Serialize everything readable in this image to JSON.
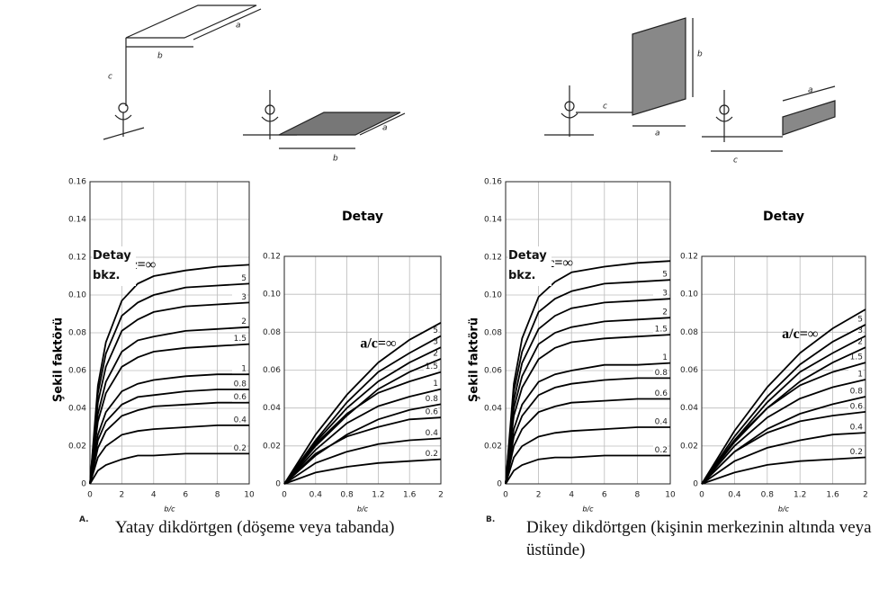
{
  "chart_data": [
    {
      "type": "line",
      "x": [
        0,
        0.5,
        1,
        2,
        3,
        4,
        6,
        8,
        10
      ],
      "xlim": [
        0,
        10
      ],
      "ylim": [
        0,
        0.16
      ],
      "xticks": [
        0,
        2,
        4,
        6,
        8,
        10
      ],
      "yticks": [
        0,
        0.02,
        0.04,
        0.06,
        0.08,
        {
          "value": 0.1,
          "label": "0.10"
        },
        0.12,
        0.14,
        0.16
      ],
      "x_label": "b/c",
      "y_label": "Şekil faktörü",
      "annotation": "Detay bkz.",
      "grid": true,
      "color": "#000000",
      "series": [
        {
          "name": "0.2",
          "values": [
            0,
            0.007,
            0.01,
            0.013,
            0.015,
            0.015,
            0.016,
            0.016,
            0.016
          ]
        },
        {
          "name": "0.4",
          "values": [
            0,
            0.014,
            0.02,
            0.026,
            0.028,
            0.029,
            0.03,
            0.031,
            0.031
          ]
        },
        {
          "name": "0.6",
          "values": [
            0,
            0.019,
            0.028,
            0.036,
            0.039,
            0.041,
            0.042,
            0.043,
            0.043
          ]
        },
        {
          "name": "0.8",
          "values": [
            0,
            0.023,
            0.033,
            0.042,
            0.046,
            0.047,
            0.049,
            0.05,
            0.05
          ]
        },
        {
          "name": "1",
          "values": [
            0,
            0.026,
            0.038,
            0.049,
            0.053,
            0.055,
            0.057,
            0.058,
            0.058
          ]
        },
        {
          "name": "1.5",
          "values": [
            0,
            0.033,
            0.048,
            0.062,
            0.067,
            0.07,
            0.072,
            0.073,
            0.074
          ]
        },
        {
          "name": "2",
          "values": [
            0,
            0.037,
            0.054,
            0.07,
            0.076,
            0.078,
            0.081,
            0.082,
            0.083
          ]
        },
        {
          "name": "3",
          "values": [
            0,
            0.043,
            0.062,
            0.081,
            0.087,
            0.091,
            0.094,
            0.095,
            0.096
          ]
        },
        {
          "name": "5",
          "values": [
            0,
            0.048,
            0.069,
            0.089,
            0.096,
            0.1,
            0.104,
            0.105,
            0.106
          ]
        },
        {
          "name": "a/c=∞",
          "values": [
            0,
            0.052,
            0.075,
            0.097,
            0.106,
            0.11,
            0.113,
            0.115,
            0.116
          ]
        }
      ]
    },
    {
      "type": "line",
      "x": [
        0,
        0.4,
        0.8,
        1.2,
        1.6,
        2
      ],
      "xlim": [
        0,
        2
      ],
      "ylim": [
        0,
        0.12
      ],
      "xticks": [
        0,
        0.4,
        0.8,
        1.2,
        1.6,
        2
      ],
      "yticks": [
        0,
        0.02,
        0.04,
        0.06,
        0.08,
        {
          "value": 0.1,
          "label": "0.10"
        },
        0.12
      ],
      "x_label": "b/c",
      "title": "Detay",
      "grid": true,
      "color": "#000000",
      "series": [
        {
          "name": "0.2",
          "values": [
            0,
            0.006,
            0.009,
            0.011,
            0.012,
            0.013
          ]
        },
        {
          "name": "0.4",
          "values": [
            0,
            0.011,
            0.017,
            0.021,
            0.023,
            0.024
          ]
        },
        {
          "name": "0.6",
          "values": [
            0,
            0.016,
            0.025,
            0.03,
            0.034,
            0.035
          ]
        },
        {
          "name": "0.8",
          "values": [
            0,
            0.015,
            0.026,
            0.034,
            0.039,
            0.042
          ]
        },
        {
          "name": "1",
          "values": [
            0,
            0.018,
            0.032,
            0.041,
            0.046,
            0.05
          ]
        },
        {
          "name": "1.5",
          "values": [
            0,
            0.021,
            0.037,
            0.048,
            0.054,
            0.059
          ]
        },
        {
          "name": "2",
          "values": [
            0,
            0.02,
            0.036,
            0.05,
            0.059,
            0.066
          ]
        },
        {
          "name": "3",
          "values": [
            0,
            0.022,
            0.04,
            0.054,
            0.064,
            0.072
          ]
        },
        {
          "name": "5",
          "values": [
            0,
            0.023,
            0.043,
            0.059,
            0.069,
            0.078
          ]
        },
        {
          "name": "a/c=∞",
          "values": [
            0,
            0.026,
            0.047,
            0.064,
            0.076,
            0.085
          ]
        }
      ]
    },
    {
      "type": "line",
      "x": [
        0,
        0.5,
        1,
        2,
        3,
        4,
        6,
        8,
        10
      ],
      "xlim": [
        0,
        10
      ],
      "ylim": [
        0,
        0.16
      ],
      "xticks": [
        0,
        2,
        4,
        6,
        8,
        10
      ],
      "yticks": [
        0,
        0.02,
        0.04,
        0.06,
        0.08,
        {
          "value": 0.1,
          "label": "0.10"
        },
        0.12,
        0.14,
        0.16
      ],
      "x_label": "b/c",
      "y_label": "Şekil faktörü",
      "annotation": "Detay bkz.",
      "grid": true,
      "color": "#000000",
      "series": [
        {
          "name": "0.2",
          "values": [
            0,
            0.007,
            0.01,
            0.013,
            0.014,
            0.014,
            0.015,
            0.015,
            0.015
          ]
        },
        {
          "name": "0.4",
          "values": [
            0,
            0.014,
            0.02,
            0.025,
            0.027,
            0.028,
            0.029,
            0.03,
            0.03
          ]
        },
        {
          "name": "0.6",
          "values": [
            0,
            0.02,
            0.029,
            0.038,
            0.041,
            0.043,
            0.044,
            0.045,
            0.045
          ]
        },
        {
          "name": "0.8",
          "values": [
            0,
            0.025,
            0.036,
            0.047,
            0.051,
            0.053,
            0.055,
            0.056,
            0.056
          ]
        },
        {
          "name": "1",
          "values": [
            0,
            0.029,
            0.042,
            0.054,
            0.058,
            0.06,
            0.063,
            0.063,
            0.064
          ]
        },
        {
          "name": "1.5",
          "values": [
            0,
            0.036,
            0.051,
            0.066,
            0.072,
            0.075,
            0.077,
            0.078,
            0.079
          ]
        },
        {
          "name": "2",
          "values": [
            0,
            0.04,
            0.057,
            0.074,
            0.08,
            0.083,
            0.086,
            0.087,
            0.088
          ]
        },
        {
          "name": "3",
          "values": [
            0,
            0.044,
            0.064,
            0.082,
            0.089,
            0.093,
            0.096,
            0.097,
            0.098
          ]
        },
        {
          "name": "5",
          "values": [
            0,
            0.049,
            0.07,
            0.091,
            0.098,
            0.102,
            0.106,
            0.107,
            0.108
          ]
        },
        {
          "name": "a/c=∞",
          "values": [
            0,
            0.053,
            0.077,
            0.099,
            0.107,
            0.112,
            0.115,
            0.117,
            0.118
          ]
        }
      ]
    },
    {
      "type": "line",
      "x": [
        0,
        0.4,
        0.8,
        1.2,
        1.6,
        2
      ],
      "xlim": [
        0,
        2
      ],
      "ylim": [
        0,
        0.12
      ],
      "xticks": [
        0,
        0.4,
        0.8,
        1.2,
        1.6,
        2
      ],
      "yticks": [
        0,
        0.02,
        0.04,
        0.06,
        0.08,
        {
          "value": 0.1,
          "label": "0.10"
        },
        0.12
      ],
      "x_label": "b/c",
      "title": "Detay",
      "grid": true,
      "color": "#000000",
      "series": [
        {
          "name": "0.2",
          "values": [
            0,
            0.006,
            0.01,
            0.012,
            0.013,
            0.014
          ]
        },
        {
          "name": "0.4",
          "values": [
            0,
            0.012,
            0.019,
            0.023,
            0.026,
            0.027
          ]
        },
        {
          "name": "0.6",
          "values": [
            0,
            0.017,
            0.027,
            0.033,
            0.036,
            0.038
          ]
        },
        {
          "name": "0.8",
          "values": [
            0,
            0.017,
            0.029,
            0.037,
            0.042,
            0.046
          ]
        },
        {
          "name": "1",
          "values": [
            0,
            0.02,
            0.035,
            0.045,
            0.051,
            0.055
          ]
        },
        {
          "name": "1.5",
          "values": [
            0,
            0.023,
            0.04,
            0.052,
            0.059,
            0.064
          ]
        },
        {
          "name": "2",
          "values": [
            0,
            0.022,
            0.04,
            0.054,
            0.064,
            0.072
          ]
        },
        {
          "name": "3",
          "values": [
            0,
            0.023,
            0.043,
            0.059,
            0.069,
            0.078
          ]
        },
        {
          "name": "5",
          "values": [
            0,
            0.025,
            0.046,
            0.063,
            0.075,
            0.084
          ]
        },
        {
          "name": "a/c=∞",
          "values": [
            0,
            0.028,
            0.051,
            0.069,
            0.082,
            0.092
          ]
        }
      ]
    }
  ],
  "figure": {
    "panels": [
      {
        "label": "A.",
        "caption": "Yatay dikdörtgen (döşeme veya tabanda)",
        "sketch_labels": [
          "a",
          "b",
          "c",
          "a",
          "b"
        ]
      },
      {
        "label": "B.",
        "caption": "Dikey dikdörtgen (kişinin merkezinin altında veya üstünde)",
        "sketch_labels": [
          "b",
          "c",
          "a",
          "a",
          "c"
        ]
      }
    ]
  }
}
